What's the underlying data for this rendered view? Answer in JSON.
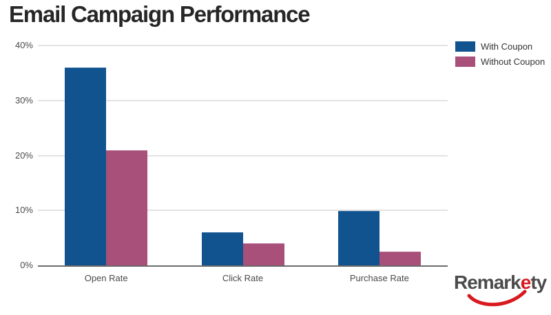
{
  "title": "Email Campaign Performance",
  "chart_data": {
    "type": "bar",
    "categories": [
      "Open Rate",
      "Click Rate",
      "Purchase Rate"
    ],
    "series": [
      {
        "name": "With Coupon",
        "color": "#11538e",
        "edge_color": "#2f6ba3",
        "values": [
          36,
          6,
          9.9
        ]
      },
      {
        "name": "Without Coupon",
        "color": "#a84f7a",
        "edge_color": "#b76e92",
        "values": [
          21,
          4,
          2.5
        ]
      }
    ],
    "title": "Email Campaign Performance",
    "xlabel": "",
    "ylabel": "",
    "ylim": [
      0,
      40
    ],
    "yticks": [
      {
        "value": 0,
        "label": "0%"
      },
      {
        "value": 10,
        "label": "10%"
      },
      {
        "value": 20,
        "label": "20%"
      },
      {
        "value": 30,
        "label": "30%"
      },
      {
        "value": 40,
        "label": "40%"
      }
    ],
    "grid": true,
    "legend_position": "top-right",
    "gridline_color": "#e3e3e3",
    "axis_color": "#6b6b6b"
  },
  "logo": {
    "prefix": "Remark",
    "accent": "e",
    "suffix": "ty",
    "accent_color": "#d8191f",
    "text_color": "#4b4b4b",
    "swoosh_color": "#d8191f"
  }
}
